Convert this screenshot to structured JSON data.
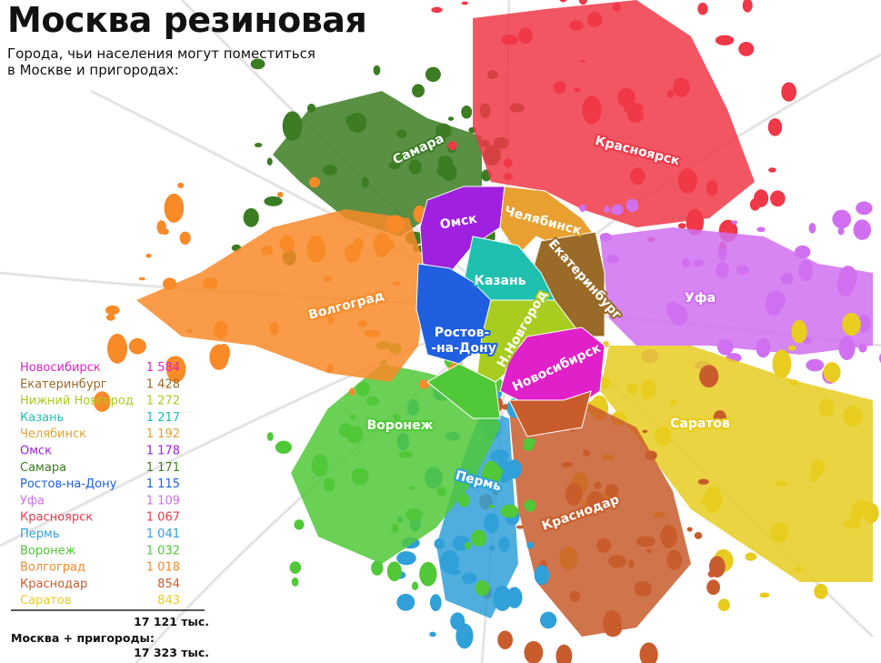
{
  "header": {
    "title": "Москва резиновая",
    "subtitle": "Города, чьи населения могут поместиться в Москве и пригородах:"
  },
  "legend": {
    "rows": [
      {
        "name": "Новосибирск",
        "value": "1 584",
        "color": "#e020c8"
      },
      {
        "name": "Екатеринбург",
        "value": "1 428",
        "color": "#9a6a28"
      },
      {
        "name": "Нижний Новгород",
        "value": "1 272",
        "color": "#a8cc20"
      },
      {
        "name": "Казань",
        "value": "1 217",
        "color": "#20c0b0"
      },
      {
        "name": "Челябинск",
        "value": "1 192",
        "color": "#e8a030"
      },
      {
        "name": "Омск",
        "value": "1 178",
        "color": "#a020e0"
      },
      {
        "name": "Самара",
        "value": "1 171",
        "color": "#3c7c22"
      },
      {
        "name": "Ростов-на-Дону",
        "value": "1 115",
        "color": "#2060e0"
      },
      {
        "name": "Уфа",
        "value": "1 109",
        "color": "#d070f0"
      },
      {
        "name": "Красноярск",
        "value": "1 067",
        "color": "#f03848"
      },
      {
        "name": "Пермь",
        "value": "1 041",
        "color": "#30a0d8"
      },
      {
        "name": "Воронеж",
        "value": "1 032",
        "color": "#50c838"
      },
      {
        "name": "Волгоград",
        "value": "1 018",
        "color": "#f88a28"
      },
      {
        "name": "Краснодар",
        "value": "854",
        "color": "#c85c2c"
      },
      {
        "name": "Саратов",
        "value": "843",
        "color": "#e8cc20"
      }
    ],
    "total": "17 121 тыс.",
    "moscow_label": "Москва + пригороды:",
    "moscow_total": "17 323 тыс."
  },
  "map": {
    "labels": [
      {
        "text": "Самара"
      },
      {
        "text": "Красноярск"
      },
      {
        "text": "Омск"
      },
      {
        "text": "Челябинск"
      },
      {
        "text": "Казань"
      },
      {
        "text": "Екатеринбург"
      },
      {
        "text": "Волгоград"
      },
      {
        "text": "Уфа"
      },
      {
        "text": "Ростов-"
      },
      {
        "text": "-на-Дону"
      },
      {
        "text": "Н.Новгород"
      },
      {
        "text": "Новосибирск"
      },
      {
        "text": "Воронеж"
      },
      {
        "text": "Саратов"
      },
      {
        "text": "Пермь"
      },
      {
        "text": "Краснодар"
      }
    ]
  }
}
